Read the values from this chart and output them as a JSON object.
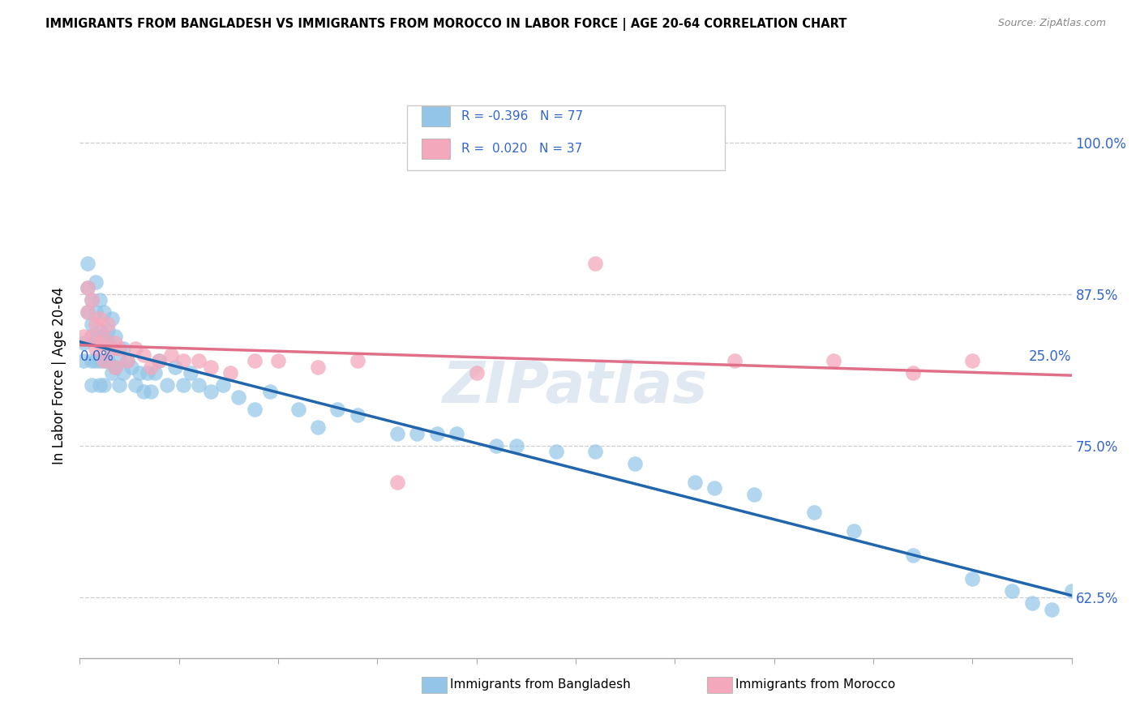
{
  "title": "IMMIGRANTS FROM BANGLADESH VS IMMIGRANTS FROM MOROCCO IN LABOR FORCE | AGE 20-64 CORRELATION CHART",
  "source": "Source: ZipAtlas.com",
  "ylabel": "In Labor Force | Age 20-64",
  "y_ticks": [
    0.625,
    0.75,
    0.875,
    1.0
  ],
  "y_tick_labels": [
    "62.5%",
    "75.0%",
    "87.5%",
    "100.0%"
  ],
  "color_bangladesh": "#92c5e8",
  "color_morocco": "#f4a8bc",
  "color_line_bangladesh": "#2166ac",
  "color_line_morocco": "#e0708a",
  "watermark": "ZIPatlas",
  "xlim": [
    0.0,
    0.25
  ],
  "ylim": [
    0.575,
    1.04
  ],
  "bangladesh_x": [
    0.001,
    0.001,
    0.002,
    0.002,
    0.002,
    0.003,
    0.003,
    0.003,
    0.003,
    0.003,
    0.004,
    0.004,
    0.004,
    0.004,
    0.005,
    0.005,
    0.005,
    0.005,
    0.006,
    0.006,
    0.006,
    0.006,
    0.007,
    0.007,
    0.007,
    0.008,
    0.008,
    0.008,
    0.009,
    0.009,
    0.01,
    0.01,
    0.011,
    0.011,
    0.012,
    0.013,
    0.014,
    0.015,
    0.016,
    0.017,
    0.018,
    0.019,
    0.02,
    0.022,
    0.024,
    0.026,
    0.028,
    0.03,
    0.033,
    0.036,
    0.04,
    0.044,
    0.048,
    0.055,
    0.06,
    0.065,
    0.07,
    0.08,
    0.085,
    0.09,
    0.095,
    0.105,
    0.11,
    0.12,
    0.13,
    0.14,
    0.155,
    0.16,
    0.17,
    0.185,
    0.195,
    0.21,
    0.225,
    0.235,
    0.24,
    0.245,
    0.25
  ],
  "bangladesh_y": [
    0.835,
    0.82,
    0.88,
    0.9,
    0.86,
    0.84,
    0.87,
    0.85,
    0.82,
    0.8,
    0.885,
    0.86,
    0.84,
    0.82,
    0.87,
    0.845,
    0.82,
    0.8,
    0.86,
    0.84,
    0.82,
    0.8,
    0.845,
    0.82,
    0.835,
    0.855,
    0.83,
    0.81,
    0.84,
    0.815,
    0.82,
    0.8,
    0.83,
    0.81,
    0.82,
    0.815,
    0.8,
    0.81,
    0.795,
    0.81,
    0.795,
    0.81,
    0.82,
    0.8,
    0.815,
    0.8,
    0.81,
    0.8,
    0.795,
    0.8,
    0.79,
    0.78,
    0.795,
    0.78,
    0.765,
    0.78,
    0.775,
    0.76,
    0.76,
    0.76,
    0.76,
    0.75,
    0.75,
    0.745,
    0.745,
    0.735,
    0.72,
    0.715,
    0.71,
    0.695,
    0.68,
    0.66,
    0.64,
    0.63,
    0.62,
    0.615,
    0.63
  ],
  "morocco_x": [
    0.001,
    0.002,
    0.002,
    0.003,
    0.003,
    0.004,
    0.004,
    0.005,
    0.005,
    0.006,
    0.006,
    0.007,
    0.008,
    0.009,
    0.009,
    0.01,
    0.012,
    0.014,
    0.016,
    0.018,
    0.02,
    0.023,
    0.026,
    0.03,
    0.033,
    0.038,
    0.044,
    0.05,
    0.06,
    0.07,
    0.08,
    0.1,
    0.13,
    0.165,
    0.19,
    0.21,
    0.225
  ],
  "morocco_y": [
    0.84,
    0.86,
    0.88,
    0.84,
    0.87,
    0.85,
    0.83,
    0.835,
    0.855,
    0.84,
    0.82,
    0.85,
    0.83,
    0.835,
    0.815,
    0.83,
    0.82,
    0.83,
    0.825,
    0.815,
    0.82,
    0.825,
    0.82,
    0.82,
    0.815,
    0.81,
    0.82,
    0.82,
    0.815,
    0.82,
    0.72,
    0.81,
    0.9,
    0.82,
    0.82,
    0.81,
    0.82
  ]
}
